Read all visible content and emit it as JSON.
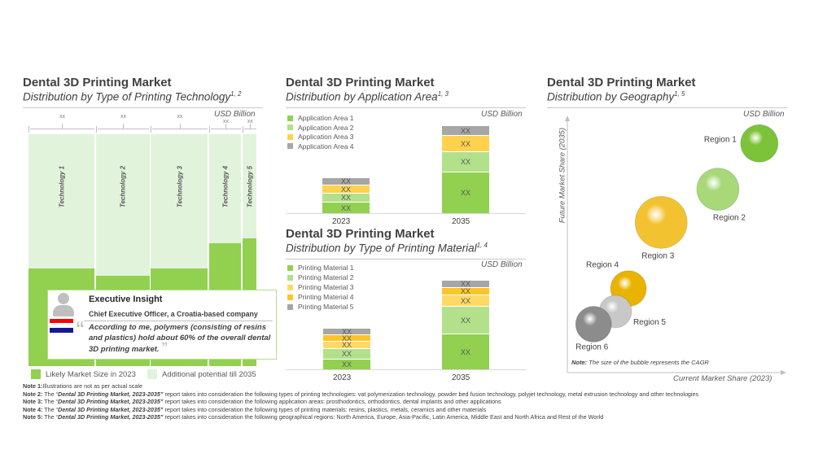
{
  "colors": {
    "green": "#92d050",
    "lightgreen": "#b3e08a",
    "pale": "#e2f3dc",
    "yellow": "#ffd24d",
    "orange": "#ffc425",
    "gray": "#a6a6a6"
  },
  "tech": {
    "title": "Dental 3D Printing Market",
    "subtitle": "Distribution by Type of Printing Technology",
    "sup": "1, 2",
    "unit": "USD Billion",
    "legend": [
      "Likely Market Size in 2023",
      "Additional potential till 2035"
    ],
    "chart_data": {
      "type": "marimekko",
      "categories": [
        "Technology 1",
        "Technology 2",
        "Technology 3",
        "Technology 4",
        "Technology 5"
      ],
      "value_labels": [
        "xx",
        "xx",
        "xx",
        "xx",
        "xx"
      ],
      "width_share_percent": [
        29.4,
        23.8,
        25.5,
        14.5,
        6.8
      ],
      "share_2023_of_total": [
        0.42,
        0.39,
        0.42,
        0.53,
        0.55
      ]
    }
  },
  "insight": {
    "title": "Executive Insight",
    "person": "Chief Executive Officer, a Croatia-based company",
    "quote": "According to me, polymers (consisting of resins and plastics) hold about 60% of the overall dental 3D printing market."
  },
  "app": {
    "title": "Dental 3D Printing Market",
    "subtitle": "Distribution by Application Area",
    "sup": "1, 3",
    "unit": "USD Billion",
    "chart_data": {
      "type": "bar",
      "stacked": true,
      "categories": [
        "2023",
        "2035"
      ],
      "series": [
        {
          "name": "Application Area 1",
          "color": "#92d050",
          "values": [
            14,
            51
          ],
          "labels": [
            "XX",
            "XX"
          ]
        },
        {
          "name": "Application Area 2",
          "color": "#b3e08a",
          "values": [
            11,
            25
          ],
          "labels": [
            "XX",
            "XX"
          ]
        },
        {
          "name": "Application Area 3",
          "color": "#ffd24d",
          "values": [
            10,
            20
          ],
          "labels": [
            "XX",
            "XX"
          ]
        },
        {
          "name": "Application Area 4",
          "color": "#a6a6a6",
          "values": [
            9,
            12
          ],
          "labels": [
            "XX",
            "XX"
          ]
        }
      ]
    }
  },
  "mat": {
    "title": "Dental 3D Printing Market",
    "subtitle": "Distribution by Type of Printing Material",
    "sup": "1, 4",
    "unit": "USD Billion",
    "chart_data": {
      "type": "bar",
      "stacked": true,
      "categories": [
        "2023",
        "2035"
      ],
      "series": [
        {
          "name": "Printing Material 1",
          "color": "#92d050",
          "values": [
            13,
            44
          ],
          "labels": [
            "XX",
            "XX"
          ]
        },
        {
          "name": "Printing Material 2",
          "color": "#b3e08a",
          "values": [
            13,
            34
          ],
          "labels": [
            "XX",
            "XX"
          ]
        },
        {
          "name": "Printing Material 3",
          "color": "#ffd966",
          "values": [
            9,
            14
          ],
          "labels": [
            "XX",
            "XX"
          ]
        },
        {
          "name": "Printing Material 4",
          "color": "#ffc425",
          "values": [
            8,
            9
          ],
          "labels": [
            "XX",
            "XX"
          ]
        },
        {
          "name": "Printing Material 5",
          "color": "#a6a6a6",
          "values": [
            8,
            9
          ],
          "labels": [
            "XX",
            "XX"
          ]
        }
      ]
    }
  },
  "geo": {
    "title": "Dental 3D Printing Market",
    "subtitle": "Distribution by Geography",
    "sup": "1, 5",
    "unit": "USD Billion",
    "note_label": "Note:",
    "note": " The size of the bubble represents the CAGR",
    "chart_data": {
      "type": "scatter",
      "xlabel": "Current Market Share (2023)",
      "ylabel": "Future Market Share (2035)",
      "xlim": [
        0,
        100
      ],
      "ylim": [
        0,
        100
      ],
      "points": [
        {
          "name": "Region 1",
          "x": 88,
          "y": 90,
          "size": 23,
          "color": "#7cc33a"
        },
        {
          "name": "Region 2",
          "x": 69,
          "y": 72,
          "size": 26,
          "color": "#a8d878"
        },
        {
          "name": "Region 3",
          "x": 43,
          "y": 59,
          "size": 32,
          "color": "#f2c230"
        },
        {
          "name": "Region 4",
          "x": 28,
          "y": 33,
          "size": 22,
          "color": "#e8b400"
        },
        {
          "name": "Region 5",
          "x": 22,
          "y": 24,
          "size": 20,
          "color": "#c8c8c8"
        },
        {
          "name": "Region 6",
          "x": 12,
          "y": 19,
          "size": 22,
          "color": "#8c8c8c"
        }
      ]
    }
  },
  "notes": [
    {
      "label": "Note 1:",
      "pre": "Illustrations are not as per actual scale",
      "report": "",
      "post": ""
    },
    {
      "label": "Note 2:",
      "pre": " The “",
      "report": "Dental 3D Printing Market, 2023-2035”",
      "post": " report takes into consideration the following types of printing technologies: vat polymerization technology, powder bed fusion technology, polyjet technology, metal extrusion technology and other technologies"
    },
    {
      "label": "Note 3:",
      "pre": " The “",
      "report": "Dental 3D Printing Market, 2023-2035”",
      "post": " report takes into consideration the following application areas: prosthodontics, orthodontics, dental implants and other applications"
    },
    {
      "label": "Note 4:",
      "pre": " The “",
      "report": "Dental 3D Printing Market, 2023-2035”",
      "post": " report takes into consideration the following types of printing materials: resins, plastics, metals, ceramics and other materials"
    },
    {
      "label": "Note 5:",
      "pre": " The “",
      "report": "Dental 3D Printing Market, 2023-2035”",
      "post": " report takes into consideration the following geographical regions: North America, Europe, Asia-Pacific, Latin America, Middle East and North Africa and Rest of the World"
    }
  ]
}
